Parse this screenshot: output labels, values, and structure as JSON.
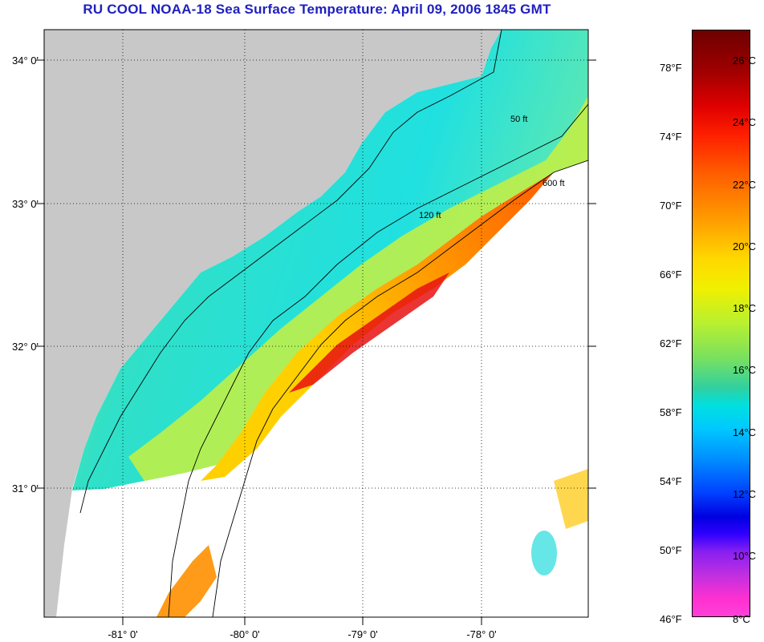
{
  "title": "RU COOL  NOAA-18  Sea Surface Temperature:  April 09, 2006 1845 GMT",
  "map": {
    "lat_labels": [
      "34° 0'",
      "33° 0'",
      "32° 0'",
      "31° 0'"
    ],
    "lon_labels": [
      "-81° 0'",
      "-80° 0'",
      "-79° 0'",
      "-78° 0'"
    ],
    "isobath_labels": [
      "50 ft",
      "120 ft",
      "600 ft"
    ],
    "colors": {
      "land": "#c8c8c8",
      "no_data": "#ffffff",
      "shelf_cool": "#30e0c8",
      "shelf_mid": "#a0f050",
      "slope_warm": "#ff6a00",
      "gulf_stream": "#e81010"
    }
  },
  "colorbar": {
    "fahrenheit": [
      "78°F",
      "74°F",
      "70°F",
      "66°F",
      "62°F",
      "58°F",
      "54°F",
      "50°F",
      "46°F"
    ],
    "celsius": [
      "26°C",
      "24°C",
      "22°C",
      "20°C",
      "18°C",
      "16°C",
      "14°C",
      "12°C",
      "10°C",
      "8°C"
    ]
  }
}
